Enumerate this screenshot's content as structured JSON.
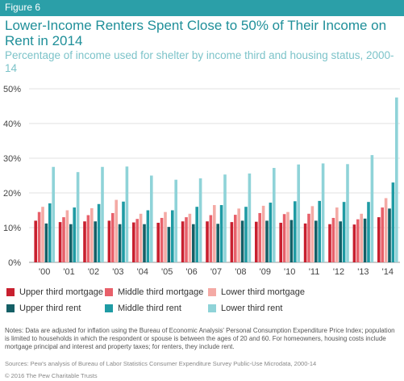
{
  "figure_label": "Figure 6",
  "notes": "Notes: Data are adjusted for inflation using the Bureau of Economic Analysis' Personal Consumption Expenditure Price Index; population is limited to households in which the respondent or spouse is between the ages of 20 and 60. For homeowners, housing costs include mortgage principal and interest and property taxes; for renters, they include rent.",
  "sources": "Sources: Pew's analysis of Bureau of Labor Statistics Consumer Expenditure Survey Public-Use Microdata, 2000-14",
  "copyright": "© 2016 The Pew Charitable Trusts",
  "colors": {
    "banner": "#2b9fa8",
    "title": "#1f8f99",
    "subtitle": "#7cc3c9"
  },
  "chart_data": {
    "type": "bar",
    "title": "Lower-Income Renters Spent Close to 50% of Their Income on Rent in 2014",
    "subtitle": "Percentage of income used for shelter by income third and housing status, 2000-14",
    "xlabel": "",
    "ylabel": "",
    "ylim": [
      0,
      50
    ],
    "yticks": [
      "0%",
      "10%",
      "20%",
      "30%",
      "40%",
      "50%"
    ],
    "grid": true,
    "legend_position": "bottom",
    "categories": [
      "'00",
      "'01",
      "'02",
      "'03",
      "'04",
      "'05",
      "'06",
      "'07",
      "'08",
      "'09",
      "'10",
      "'11",
      "'12",
      "'13",
      "'14"
    ],
    "series": [
      {
        "name": "Upper third mortgage",
        "color": "#c8202f",
        "values": [
          12.0,
          11.6,
          11.8,
          12.0,
          11.5,
          11.4,
          11.8,
          11.8,
          11.6,
          11.7,
          11.4,
          11.2,
          11.0,
          10.9,
          13.0
        ]
      },
      {
        "name": "Middle third mortgage",
        "color": "#e8606a",
        "values": [
          14.5,
          13.0,
          13.6,
          14.2,
          12.5,
          12.8,
          13.0,
          13.6,
          13.7,
          14.2,
          13.9,
          14.0,
          12.8,
          12.4,
          15.8
        ]
      },
      {
        "name": "Lower third mortgage",
        "color": "#f4aaa5",
        "values": [
          16.0,
          15.0,
          15.6,
          18.0,
          14.0,
          14.5,
          14.0,
          16.5,
          15.5,
          16.3,
          14.5,
          16.2,
          15.8,
          14.0,
          18.5
        ]
      },
      {
        "name": "Upper third rent",
        "color": "#155f66",
        "values": [
          11.2,
          11.0,
          11.8,
          11.0,
          11.0,
          10.2,
          11.0,
          11.1,
          12.0,
          12.0,
          12.2,
          12.0,
          11.8,
          12.6,
          15.5
        ]
      },
      {
        "name": "Middle third rent",
        "color": "#1f9ba4",
        "values": [
          17.0,
          15.8,
          16.8,
          17.5,
          15.0,
          15.0,
          16.0,
          16.5,
          16.0,
          17.2,
          17.6,
          17.7,
          17.4,
          17.4,
          23.0
        ]
      },
      {
        "name": "Lower third rent",
        "color": "#8fd3d8",
        "values": [
          27.5,
          26.0,
          27.5,
          27.6,
          25.0,
          23.8,
          24.2,
          25.3,
          25.6,
          27.2,
          28.2,
          28.5,
          28.3,
          30.9,
          47.5
        ]
      }
    ]
  }
}
